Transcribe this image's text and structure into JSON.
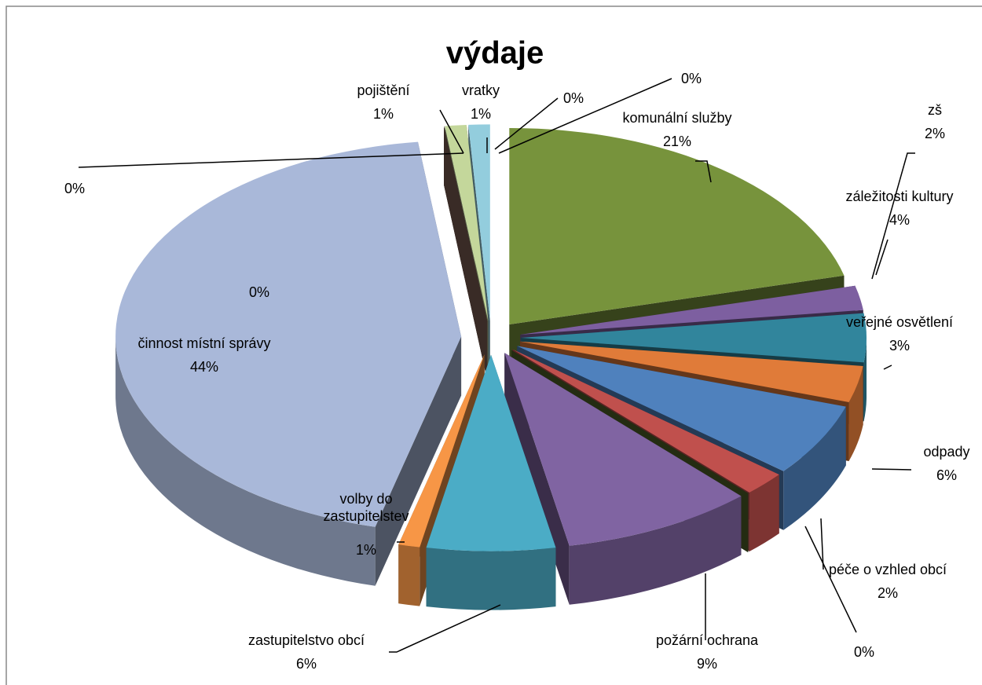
{
  "chart_data": {
    "type": "pie3d",
    "title": "výdaje",
    "categories": [
      null,
      null,
      "komunální služby",
      "zš",
      "záležitosti kultury",
      "veřejné osvětlení",
      "odpady",
      "péče  o vzhled  obcí",
      null,
      "požární ochrana",
      "zastupitelstvo obcí",
      "volby do zastupitelstev",
      "činnost místní správy",
      null,
      null,
      "pojištění",
      "vratky"
    ],
    "values": [
      0,
      0,
      21,
      2,
      4,
      3,
      6,
      2,
      0,
      9,
      6,
      1,
      44,
      0,
      0,
      1,
      1
    ],
    "value_labels": [
      "0%",
      "0%",
      "21%",
      "2%",
      "4%",
      "3%",
      "6%",
      "2%",
      "0%",
      "9%",
      "6%",
      "1%",
      "44%",
      "0%",
      "0%",
      "1%",
      "1%"
    ],
    "colors": [
      "#4bacc6",
      "#9bbb59",
      "#77933c",
      "#7d5fa0",
      "#31859c",
      "#e07b39",
      "#4f81bd",
      "#c0504d",
      "#4f6228",
      "#8064a2",
      "#4bacc6",
      "#f79646",
      "#a9b8d9",
      "#7f5f55",
      "#7f5f55",
      "#c4d79b",
      "#93cddd"
    ]
  }
}
